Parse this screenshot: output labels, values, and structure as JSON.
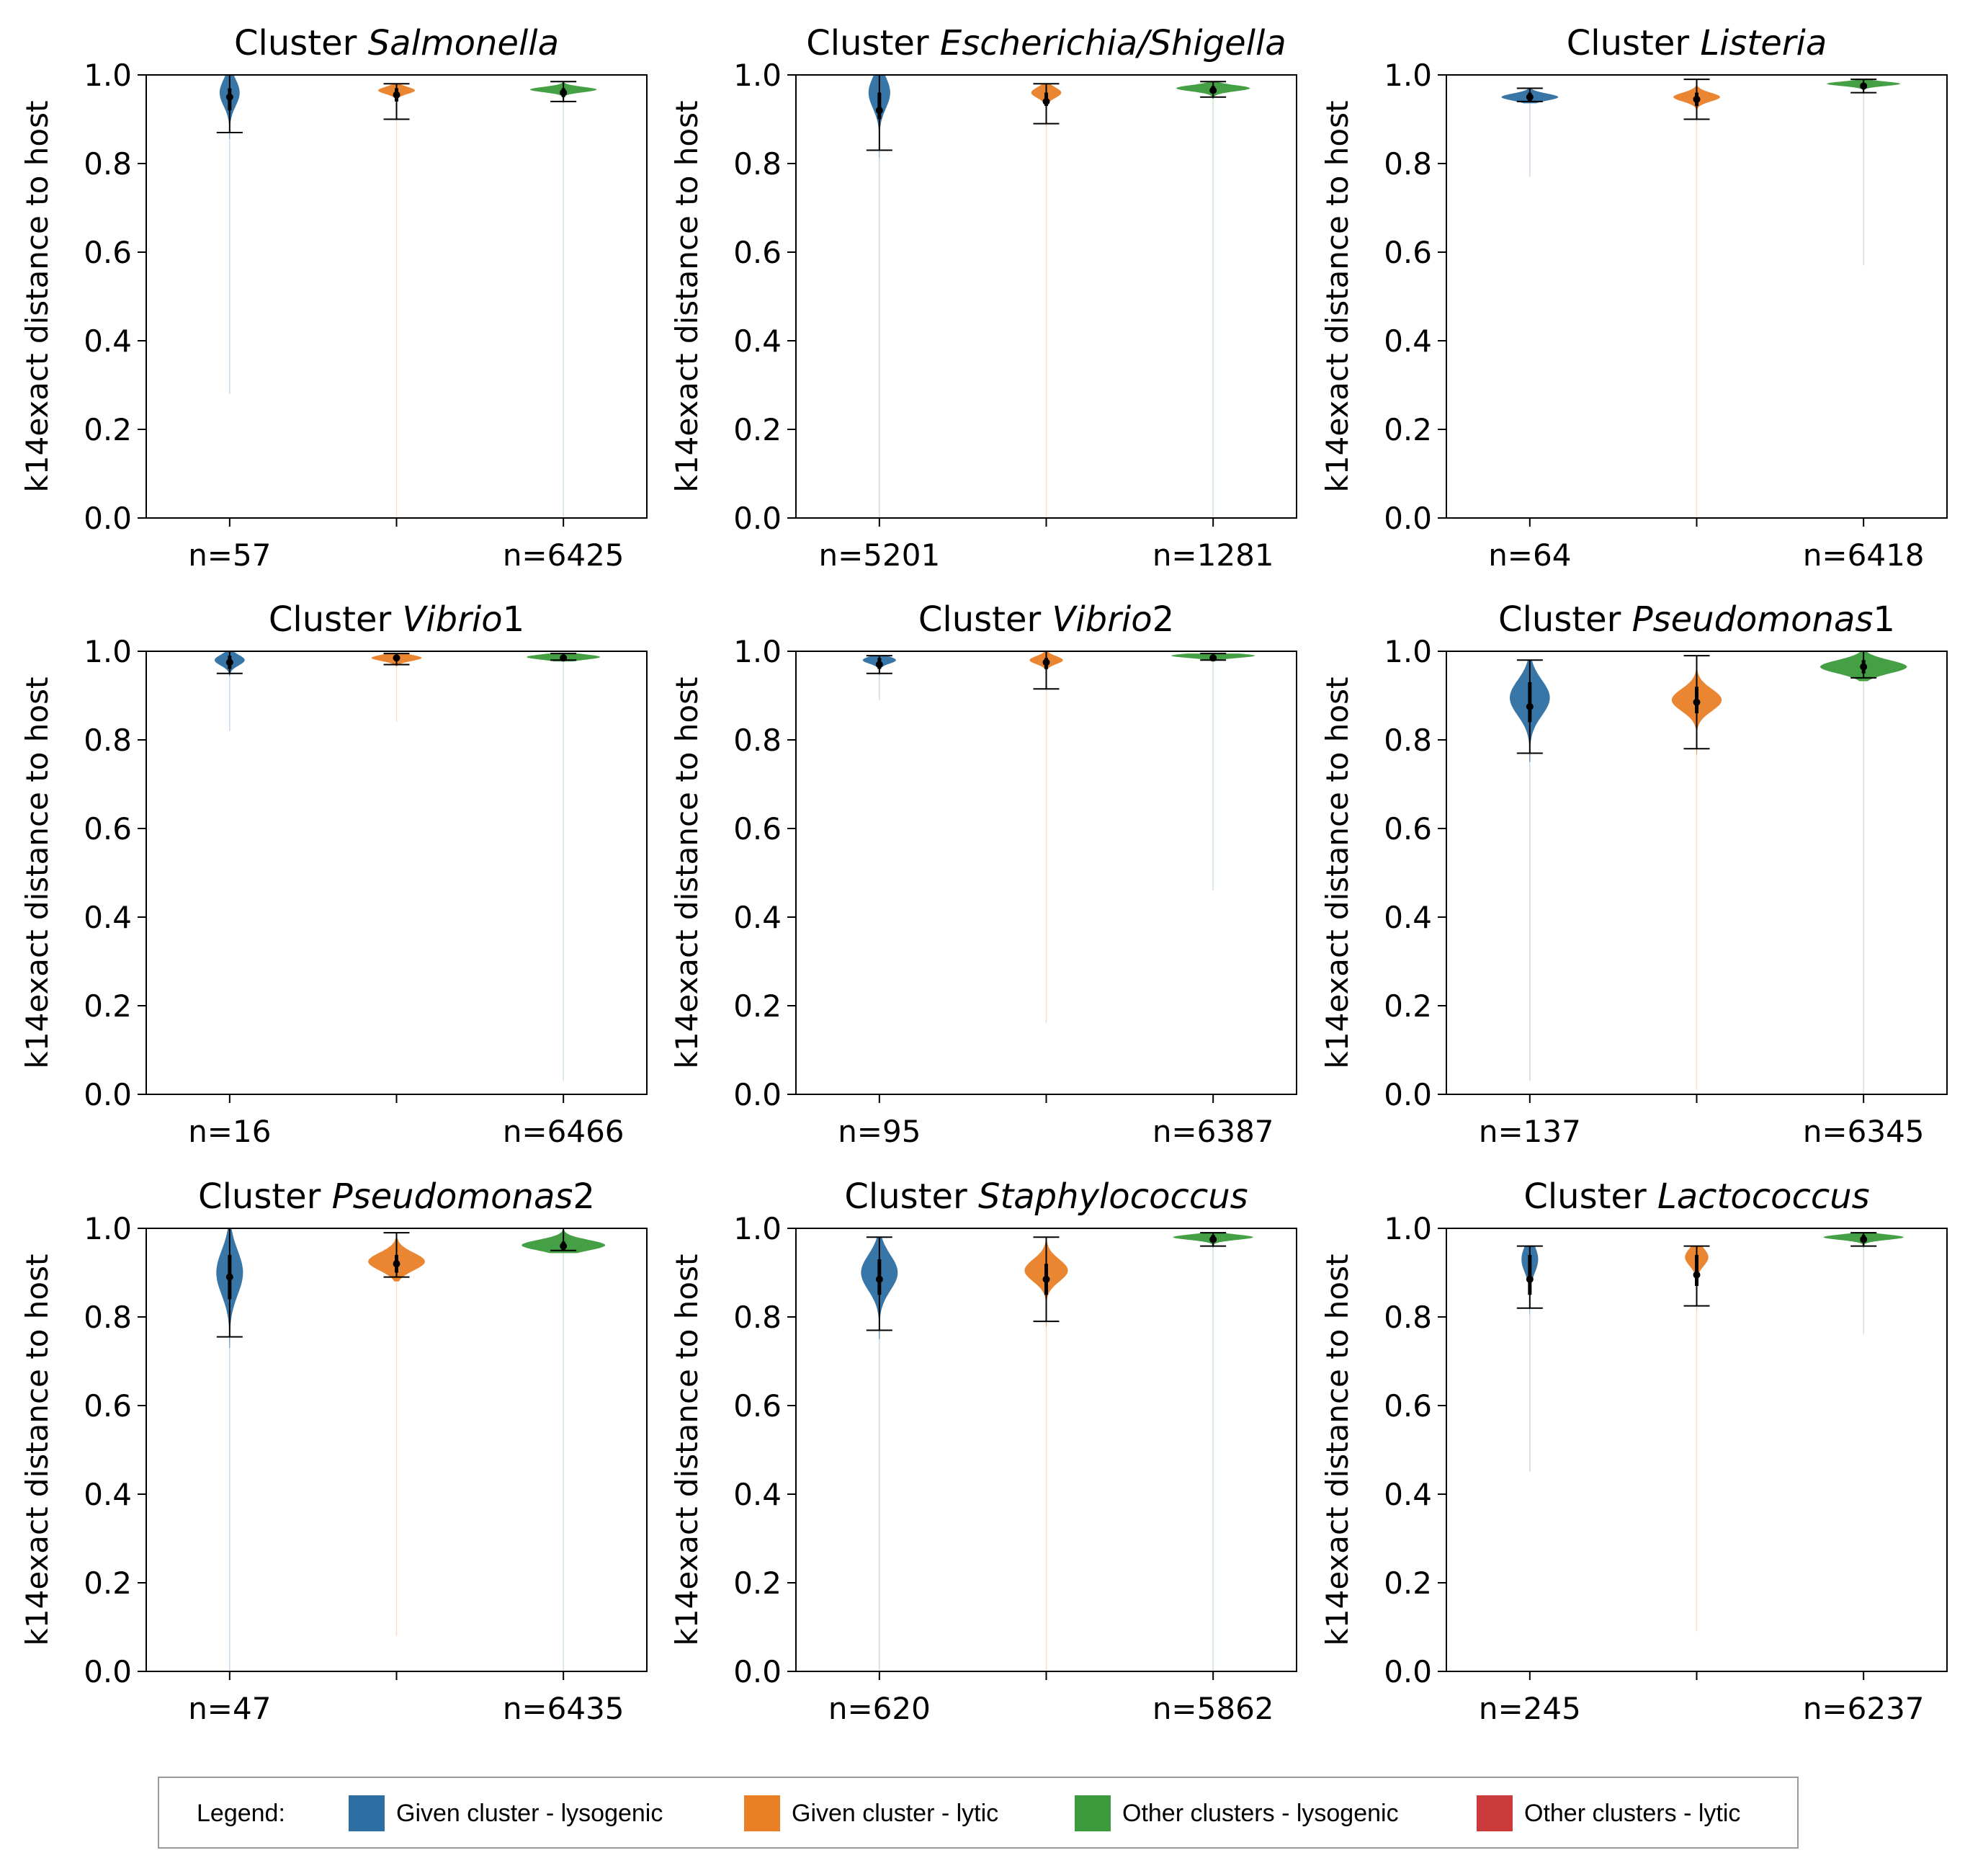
{
  "chart_data": [
    {
      "type": "violin",
      "title_prefix": "Cluster ",
      "title_italic": "Salmonella",
      "title_suffix": "",
      "ylabel": "k14exact distance to host",
      "ylim": [
        0,
        1.0
      ],
      "yticks": [
        0.0,
        0.2,
        0.4,
        0.6,
        0.8,
        1.0
      ],
      "xtick_labels": [
        "n=57",
        "n=6425"
      ],
      "violins": [
        {
          "group": "Given cluster - lysogenic",
          "median": 0.95,
          "q1": 0.92,
          "q3": 0.97,
          "min": 0.87,
          "max": 1.0,
          "tail_min": 0.28,
          "mode": 0.96,
          "spread": 0.03,
          "width": 0.12
        },
        {
          "group": "Given cluster - lytic",
          "median": 0.955,
          "q1": 0.94,
          "q3": 0.97,
          "min": 0.9,
          "max": 0.98,
          "tail_min": 0.0,
          "mode": 0.965,
          "spread": 0.008,
          "width": 0.22
        },
        {
          "group": "Other clusters - lysogenic",
          "median": 0.96,
          "q1": 0.95,
          "q3": 0.97,
          "min": 0.94,
          "max": 0.985,
          "tail_min": 0.0,
          "mode": 0.967,
          "spread": 0.006,
          "width": 0.4
        }
      ]
    },
    {
      "type": "violin",
      "title_prefix": "Cluster ",
      "title_italic": "Escherichia/Shigella",
      "title_suffix": "",
      "ylabel": "k14exact distance to host",
      "ylim": [
        0,
        1.0
      ],
      "yticks": [
        0.0,
        0.2,
        0.4,
        0.6,
        0.8,
        1.0
      ],
      "xtick_labels": [
        "n=5201",
        "n=1281"
      ],
      "violins": [
        {
          "group": "Given cluster - lysogenic",
          "median": 0.92,
          "q1": 0.9,
          "q3": 0.96,
          "min": 0.83,
          "max": 1.0,
          "tail_min": 0.0,
          "mode": 0.96,
          "spread": 0.035,
          "width": 0.13
        },
        {
          "group": "Given cluster - lytic",
          "median": 0.94,
          "q1": 0.93,
          "q3": 0.96,
          "min": 0.89,
          "max": 0.98,
          "tail_min": 0.0,
          "mode": 0.96,
          "spread": 0.012,
          "width": 0.18
        },
        {
          "group": "Other clusters - lysogenic",
          "median": 0.965,
          "q1": 0.96,
          "q3": 0.975,
          "min": 0.95,
          "max": 0.985,
          "tail_min": 0.0,
          "mode": 0.97,
          "spread": 0.007,
          "width": 0.44
        }
      ]
    },
    {
      "type": "violin",
      "title_prefix": "Cluster ",
      "title_italic": "Listeria",
      "title_suffix": "",
      "ylabel": "k14exact distance to host",
      "ylim": [
        0,
        1.0
      ],
      "yticks": [
        0.0,
        0.2,
        0.4,
        0.6,
        0.8,
        1.0
      ],
      "xtick_labels": [
        "n=64",
        "n=6418"
      ],
      "violins": [
        {
          "group": "Given cluster - lysogenic",
          "median": 0.95,
          "q1": 0.94,
          "q3": 0.96,
          "min": 0.94,
          "max": 0.97,
          "tail_min": 0.77,
          "mode": 0.95,
          "spread": 0.008,
          "width": 0.34
        },
        {
          "group": "Given cluster - lytic",
          "median": 0.945,
          "q1": 0.93,
          "q3": 0.96,
          "min": 0.9,
          "max": 0.99,
          "tail_min": 0.0,
          "mode": 0.95,
          "spread": 0.01,
          "width": 0.28
        },
        {
          "group": "Other clusters - lysogenic",
          "median": 0.975,
          "q1": 0.97,
          "q3": 0.98,
          "min": 0.96,
          "max": 0.99,
          "tail_min": 0.57,
          "mode": 0.98,
          "spread": 0.005,
          "width": 0.44
        }
      ]
    },
    {
      "type": "violin",
      "title_prefix": "Cluster ",
      "title_italic": "Vibrio",
      "title_suffix": "1",
      "ylabel": "k14exact distance to host",
      "ylim": [
        0,
        1.0
      ],
      "yticks": [
        0.0,
        0.2,
        0.4,
        0.6,
        0.8,
        1.0
      ],
      "xtick_labels": [
        "n=16",
        "n=6466"
      ],
      "violins": [
        {
          "group": "Given cluster - lysogenic",
          "median": 0.975,
          "q1": 0.96,
          "q3": 0.99,
          "min": 0.95,
          "max": 1.0,
          "tail_min": 0.82,
          "mode": 0.98,
          "spread": 0.012,
          "width": 0.18
        },
        {
          "group": "Given cluster - lytic",
          "median": 0.985,
          "q1": 0.98,
          "q3": 0.99,
          "min": 0.97,
          "max": 0.995,
          "tail_min": 0.84,
          "mode": 0.985,
          "spread": 0.007,
          "width": 0.3
        },
        {
          "group": "Other clusters - lysogenic",
          "median": 0.985,
          "q1": 0.98,
          "q3": 0.99,
          "min": 0.98,
          "max": 0.995,
          "tail_min": 0.03,
          "mode": 0.987,
          "spread": 0.006,
          "width": 0.44
        }
      ]
    },
    {
      "type": "violin",
      "title_prefix": "Cluster ",
      "title_italic": "Vibrio",
      "title_suffix": "2",
      "ylabel": "k14exact distance to host",
      "ylim": [
        0,
        1.0
      ],
      "yticks": [
        0.0,
        0.2,
        0.4,
        0.6,
        0.8,
        1.0
      ],
      "xtick_labels": [
        "n=95",
        "n=6387"
      ],
      "violins": [
        {
          "group": "Given cluster - lysogenic",
          "median": 0.97,
          "q1": 0.96,
          "q3": 0.985,
          "min": 0.95,
          "max": 0.99,
          "tail_min": 0.89,
          "mode": 0.98,
          "spread": 0.008,
          "width": 0.2
        },
        {
          "group": "Given cluster - lytic",
          "median": 0.975,
          "q1": 0.96,
          "q3": 0.985,
          "min": 0.915,
          "max": 1.0,
          "tail_min": 0.16,
          "mode": 0.98,
          "spread": 0.009,
          "width": 0.2
        },
        {
          "group": "Other clusters - lysogenic",
          "median": 0.985,
          "q1": 0.98,
          "q3": 0.99,
          "min": 0.98,
          "max": 0.995,
          "tail_min": 0.46,
          "mode": 0.99,
          "spread": 0.005,
          "width": 0.5
        }
      ]
    },
    {
      "type": "violin",
      "title_prefix": "Cluster ",
      "title_italic": "Pseudomonas",
      "title_suffix": "1",
      "ylabel": "k14exact distance to host",
      "ylim": [
        0,
        1.0
      ],
      "yticks": [
        0.0,
        0.2,
        0.4,
        0.6,
        0.8,
        1.0
      ],
      "xtick_labels": [
        "n=137",
        "n=6345"
      ],
      "violins": [
        {
          "group": "Given cluster - lysogenic",
          "median": 0.875,
          "q1": 0.84,
          "q3": 0.93,
          "min": 0.77,
          "max": 0.98,
          "tail_min": 0.03,
          "mode": 0.895,
          "spread": 0.04,
          "width": 0.24
        },
        {
          "group": "Given cluster - lytic",
          "median": 0.885,
          "q1": 0.86,
          "q3": 0.92,
          "min": 0.78,
          "max": 0.99,
          "tail_min": 0.01,
          "mode": 0.89,
          "spread": 0.025,
          "width": 0.3
        },
        {
          "group": "Other clusters - lysogenic",
          "median": 0.965,
          "q1": 0.95,
          "q3": 0.98,
          "min": 0.94,
          "max": 1.0,
          "tail_min": 0.0,
          "mode": 0.965,
          "spread": 0.015,
          "width": 0.52
        }
      ]
    },
    {
      "type": "violin",
      "title_prefix": "Cluster ",
      "title_italic": "Pseudomonas",
      "title_suffix": "2",
      "ylabel": "k14exact distance to host",
      "ylim": [
        0,
        1.0
      ],
      "yticks": [
        0.0,
        0.2,
        0.4,
        0.6,
        0.8,
        1.0
      ],
      "xtick_labels": [
        "n=47",
        "n=6435"
      ],
      "violins": [
        {
          "group": "Given cluster - lysogenic",
          "median": 0.89,
          "q1": 0.84,
          "q3": 0.94,
          "min": 0.755,
          "max": 1.0,
          "tail_min": 0.0,
          "mode": 0.9,
          "spread": 0.05,
          "width": 0.16
        },
        {
          "group": "Given cluster - lytic",
          "median": 0.92,
          "q1": 0.9,
          "q3": 0.94,
          "min": 0.89,
          "max": 0.99,
          "tail_min": 0.08,
          "mode": 0.925,
          "spread": 0.02,
          "width": 0.34
        },
        {
          "group": "Other clusters - lysogenic",
          "median": 0.96,
          "q1": 0.95,
          "q3": 0.97,
          "min": 0.95,
          "max": 1.0,
          "tail_min": 0.0,
          "mode": 0.962,
          "spread": 0.012,
          "width": 0.5
        }
      ]
    },
    {
      "type": "violin",
      "title_prefix": "Cluster ",
      "title_italic": "Staphylococcus",
      "title_suffix": "",
      "ylabel": "k14exact distance to host",
      "ylim": [
        0,
        1.0
      ],
      "yticks": [
        0.0,
        0.2,
        0.4,
        0.6,
        0.8,
        1.0
      ],
      "xtick_labels": [
        "n=620",
        "n=5862"
      ],
      "violins": [
        {
          "group": "Given cluster - lysogenic",
          "median": 0.885,
          "q1": 0.85,
          "q3": 0.93,
          "min": 0.77,
          "max": 0.98,
          "tail_min": 0.0,
          "mode": 0.9,
          "spread": 0.04,
          "width": 0.22
        },
        {
          "group": "Given cluster - lytic",
          "median": 0.885,
          "q1": 0.85,
          "q3": 0.92,
          "min": 0.79,
          "max": 0.98,
          "tail_min": 0.0,
          "mode": 0.905,
          "spread": 0.025,
          "width": 0.26
        },
        {
          "group": "Other clusters - lysogenic",
          "median": 0.975,
          "q1": 0.97,
          "q3": 0.985,
          "min": 0.96,
          "max": 0.99,
          "tail_min": 0.0,
          "mode": 0.98,
          "spread": 0.006,
          "width": 0.48
        }
      ]
    },
    {
      "type": "violin",
      "title_prefix": "Cluster ",
      "title_italic": "Lactococcus",
      "title_suffix": "",
      "ylabel": "k14exact distance to host",
      "ylim": [
        0,
        1.0
      ],
      "yticks": [
        0.0,
        0.2,
        0.4,
        0.6,
        0.8,
        1.0
      ],
      "xtick_labels": [
        "n=245",
        "n=6237"
      ],
      "violins": [
        {
          "group": "Given cluster - lysogenic",
          "median": 0.885,
          "q1": 0.85,
          "q3": 0.94,
          "min": 0.82,
          "max": 0.96,
          "tail_min": 0.45,
          "mode": 0.93,
          "spread": 0.03,
          "width": 0.1
        },
        {
          "group": "Given cluster - lytic",
          "median": 0.895,
          "q1": 0.87,
          "q3": 0.94,
          "min": 0.825,
          "max": 0.96,
          "tail_min": 0.09,
          "mode": 0.935,
          "spread": 0.02,
          "width": 0.14
        },
        {
          "group": "Other clusters - lysogenic",
          "median": 0.975,
          "q1": 0.97,
          "q3": 0.985,
          "min": 0.96,
          "max": 0.99,
          "tail_min": 0.76,
          "mode": 0.98,
          "spread": 0.006,
          "width": 0.48
        }
      ]
    }
  ],
  "legend": {
    "title": "Legend:",
    "items": [
      {
        "label": "Given cluster - lysogenic",
        "color": "#2e6fa3"
      },
      {
        "label": "Given cluster - lytic",
        "color": "#e98026"
      },
      {
        "label": "Other clusters - lysogenic",
        "color": "#3b9a3b"
      },
      {
        "label": "Other clusters - lytic",
        "color": "#cc3b3b"
      }
    ]
  }
}
